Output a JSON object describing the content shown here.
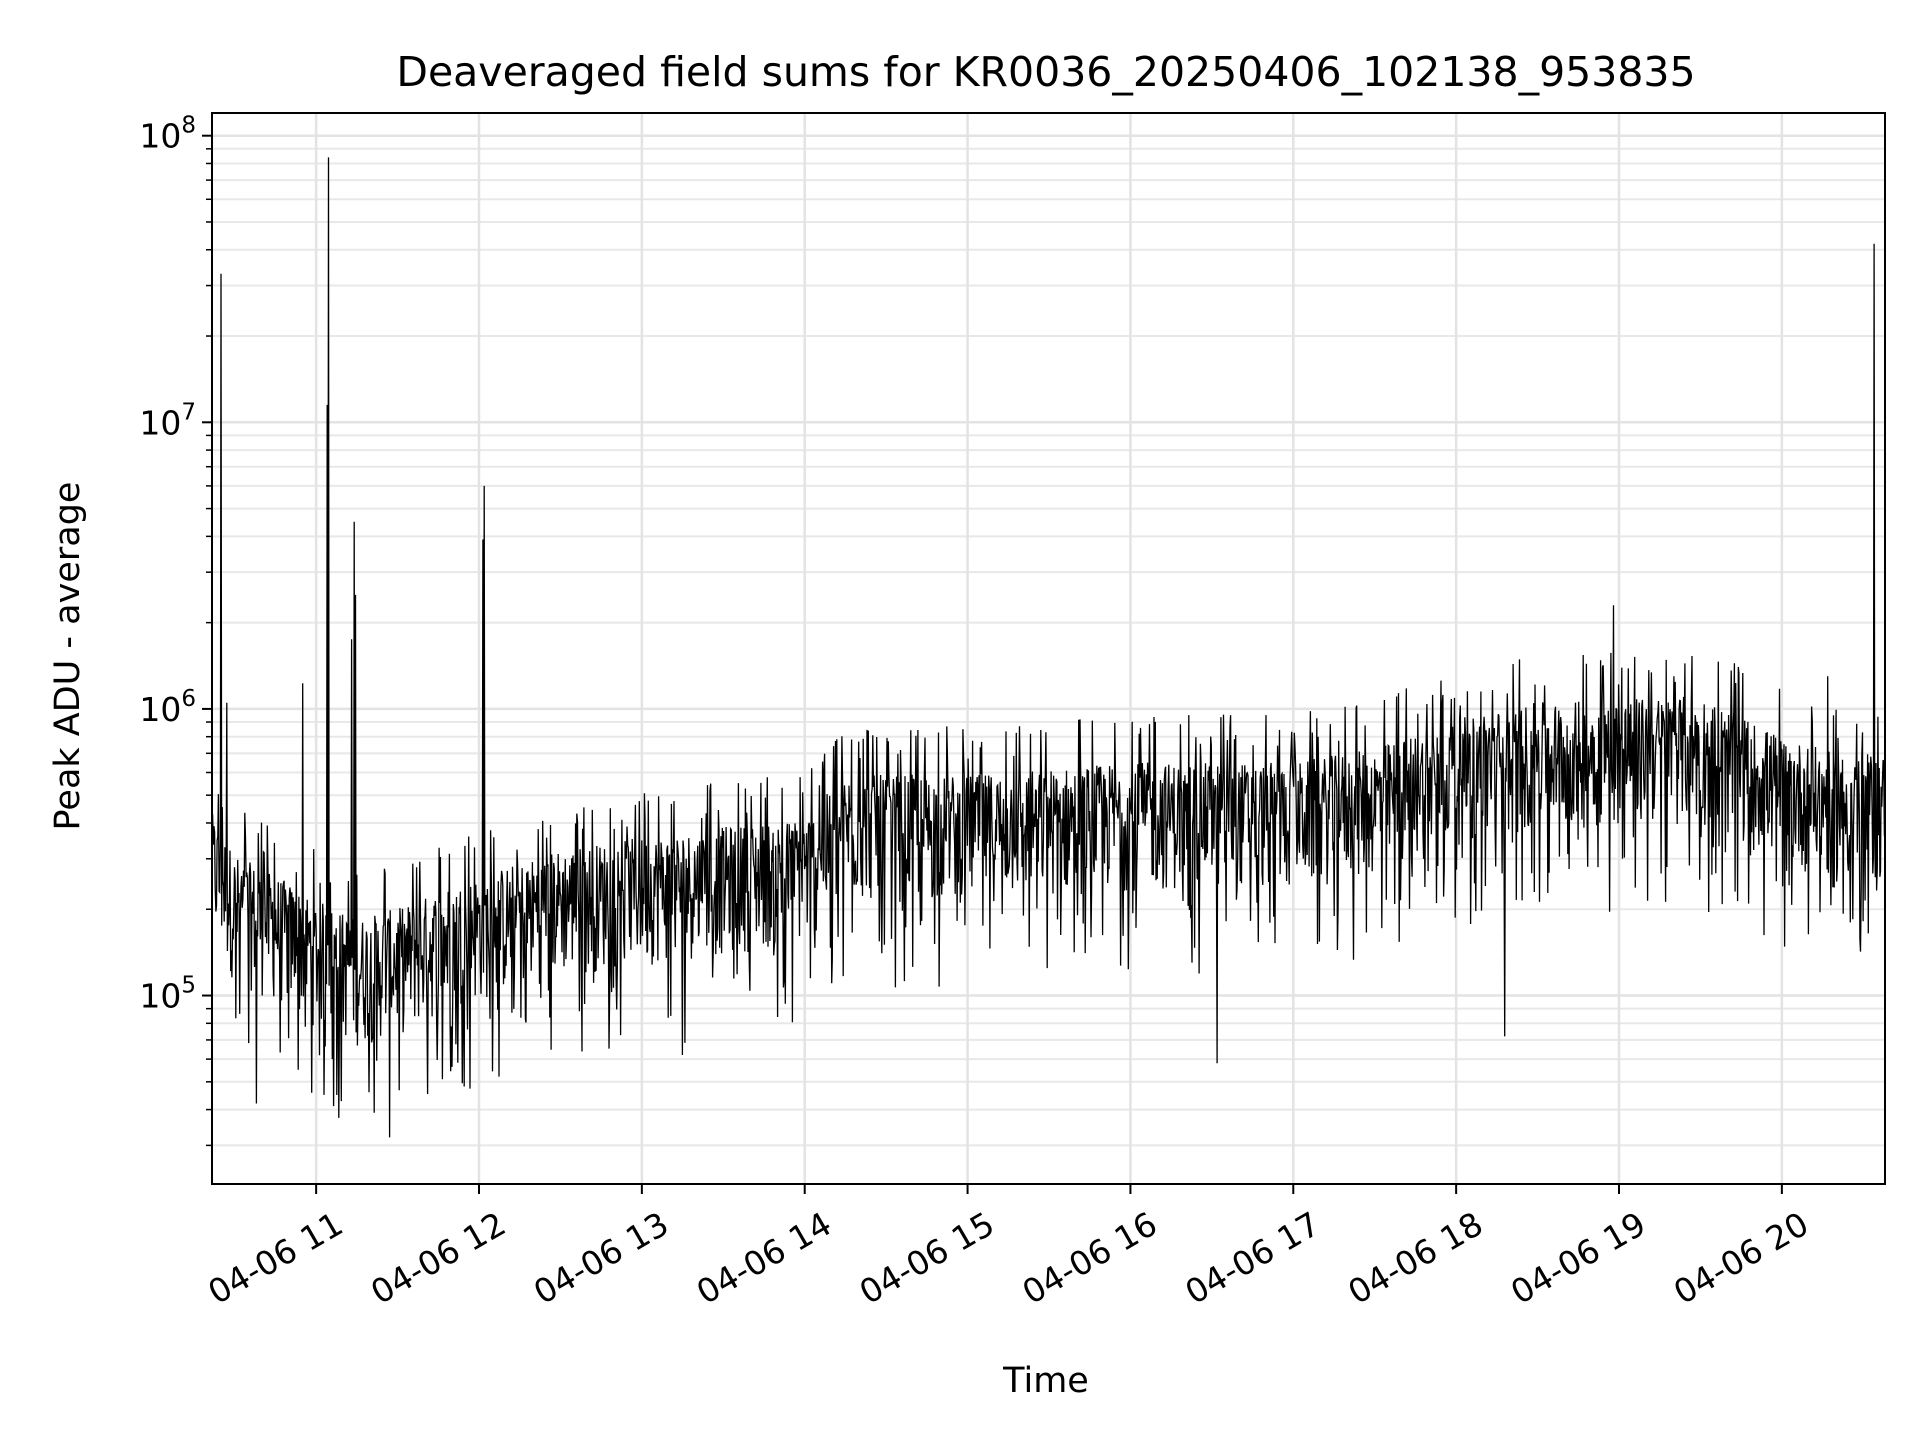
{
  "chart_data": {
    "type": "line",
    "title": "Deaveraged field sums for KR0036_20250406_102138_953835",
    "xlabel": "Time",
    "ylabel": "Peak ADU - average",
    "yscale": "log",
    "ylim": [
      22000,
      120000000
    ],
    "xlim": [
      "2025-04-06T10:21:38",
      "2025-04-06T20:38:00"
    ],
    "grid": true,
    "x_ticks": [
      {
        "t": "2025-04-06T11:00:00",
        "label": "04-06 11"
      },
      {
        "t": "2025-04-06T12:00:00",
        "label": "04-06 12"
      },
      {
        "t": "2025-04-06T13:00:00",
        "label": "04-06 13"
      },
      {
        "t": "2025-04-06T14:00:00",
        "label": "04-06 14"
      },
      {
        "t": "2025-04-06T15:00:00",
        "label": "04-06 15"
      },
      {
        "t": "2025-04-06T16:00:00",
        "label": "04-06 16"
      },
      {
        "t": "2025-04-06T17:00:00",
        "label": "04-06 17"
      },
      {
        "t": "2025-04-06T18:00:00",
        "label": "04-06 18"
      },
      {
        "t": "2025-04-06T19:00:00",
        "label": "04-06 19"
      },
      {
        "t": "2025-04-06T20:00:00",
        "label": "04-06 20"
      }
    ],
    "y_ticks": [
      {
        "value": 100000,
        "base": "10",
        "exp": "5"
      },
      {
        "value": 1000000,
        "base": "10",
        "exp": "6"
      },
      {
        "value": 10000000,
        "base": "10",
        "exp": "7"
      },
      {
        "value": 100000000,
        "base": "10",
        "exp": "8"
      }
    ],
    "series": [
      {
        "color": "#000000",
        "x": [
          "2025-04-06T10:21:38",
          "2025-04-06T10:30:00",
          "2025-04-06T10:45:00",
          "2025-04-06T11:00:00",
          "2025-04-06T11:15:00",
          "2025-04-06T11:30:00",
          "2025-04-06T11:45:00",
          "2025-04-06T12:00:00",
          "2025-04-06T12:30:00",
          "2025-04-06T13:00:00",
          "2025-04-06T13:30:00",
          "2025-04-06T14:00:00",
          "2025-04-06T14:15:00",
          "2025-04-06T14:30:00",
          "2025-04-06T15:00:00",
          "2025-04-06T15:30:00",
          "2025-04-06T16:00:00",
          "2025-04-06T16:30:00",
          "2025-04-06T17:00:00",
          "2025-04-06T17:30:00",
          "2025-04-06T18:00:00",
          "2025-04-06T18:30:00",
          "2025-04-06T19:00:00",
          "2025-04-06T19:30:00",
          "2025-04-06T20:00:00",
          "2025-04-06T20:20:00",
          "2025-04-06T20:38:00"
        ],
        "y": [
          280000,
          200000,
          170000,
          140000,
          120000,
          130000,
          150000,
          170000,
          210000,
          230000,
          250000,
          270000,
          380000,
          380000,
          380000,
          400000,
          420000,
          420000,
          420000,
          470000,
          600000,
          680000,
          700000,
          720000,
          520000,
          450000,
          450000
        ],
        "spikes": [
          {
            "t": "2025-04-06T10:25:00",
            "value": 33000000
          },
          {
            "t": "2025-04-06T10:27:00",
            "value": 1050000
          },
          {
            "t": "2025-04-06T10:55:00",
            "value": 1230000
          },
          {
            "t": "2025-04-06T11:04:30",
            "value": 84000000
          },
          {
            "t": "2025-04-06T11:04:00",
            "value": 11500000
          },
          {
            "t": "2025-04-06T11:13:00",
            "value": 1750000
          },
          {
            "t": "2025-04-06T11:14:00",
            "value": 4500000
          },
          {
            "t": "2025-04-06T11:14:30",
            "value": 2500000
          },
          {
            "t": "2025-04-06T12:02:00",
            "value": 6000000
          },
          {
            "t": "2025-04-06T12:01:30",
            "value": 3900000
          },
          {
            "t": "2025-04-06T18:58:00",
            "value": 2300000
          },
          {
            "t": "2025-04-06T20:17:00",
            "value": 1300000
          },
          {
            "t": "2025-04-06T20:34:00",
            "value": 42000000
          }
        ],
        "dips": [
          {
            "t": "2025-04-06T11:27:00",
            "value": 32000
          },
          {
            "t": "2025-04-06T10:38:00",
            "value": 42000
          },
          {
            "t": "2025-04-06T11:03:00",
            "value": 45000
          },
          {
            "t": "2025-04-06T16:32:00",
            "value": 58000
          },
          {
            "t": "2025-04-06T18:18:00",
            "value": 72000
          },
          {
            "t": "2025-04-06T13:15:00",
            "value": 62000
          }
        ]
      }
    ]
  }
}
